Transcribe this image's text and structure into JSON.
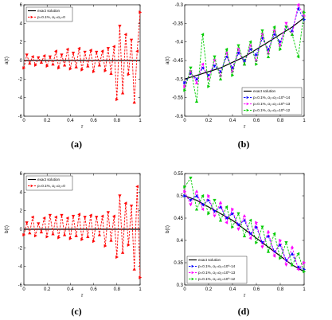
{
  "figure": {
    "captions": [
      "(a)",
      "(b)",
      "(c)",
      "(d)"
    ]
  },
  "chart_data": [
    {
      "type": "line",
      "xlabel": "τ",
      "ylabel": "a(τ)",
      "xlim": [
        0,
        1
      ],
      "ylim": [
        -6,
        6
      ],
      "xticks": [
        0,
        0.2,
        0.4,
        0.6,
        0.8,
        1
      ],
      "yticks": [
        -6,
        -4,
        -2,
        0,
        2,
        4,
        6
      ],
      "legend": "top-left",
      "colors": [
        "#000000",
        "#ff0000"
      ],
      "series": [
        {
          "name": "exact solution",
          "x": [
            0,
            1
          ],
          "values": [
            0,
            0
          ]
        },
        {
          "name": "p=0.1%, α1=α2=0",
          "x": [
            0,
            0.025,
            0.05,
            0.075,
            0.1,
            0.125,
            0.15,
            0.175,
            0.2,
            0.225,
            0.25,
            0.275,
            0.3,
            0.325,
            0.35,
            0.375,
            0.4,
            0.425,
            0.45,
            0.475,
            0.5,
            0.525,
            0.55,
            0.575,
            0.6,
            0.625,
            0.65,
            0.675,
            0.7,
            0.725,
            0.75,
            0.775,
            0.8,
            0.825,
            0.85,
            0.875,
            0.9,
            0.925,
            0.95,
            0.975,
            1
          ],
          "values": [
            -0.8,
            0.6,
            -0.3,
            0.4,
            -0.5,
            0.3,
            -0.2,
            0.5,
            -0.6,
            0.4,
            -0.4,
            1.0,
            -0.8,
            0.6,
            -0.5,
            1.2,
            -0.9,
            0.8,
            -0.7,
            1.3,
            -1.0,
            0.9,
            -0.6,
            1.1,
            -1.2,
            0.9,
            -0.5,
            1.0,
            -1.1,
            1.3,
            -1.4,
            1.5,
            -4.2,
            3.7,
            -3.5,
            2.8,
            -1.5,
            2.2,
            -4.5,
            1.0,
            5.2
          ]
        }
      ]
    },
    {
      "type": "line",
      "xlabel": "τ",
      "ylabel": "a(τ)",
      "xlim": [
        0,
        1
      ],
      "ylim": [
        -0.6,
        -0.3
      ],
      "xticks": [
        0,
        0.2,
        0.4,
        0.6,
        0.8,
        1
      ],
      "yticks": [
        -0.6,
        -0.55,
        -0.5,
        -0.45,
        -0.4,
        -0.35,
        -0.3
      ],
      "legend": "bottom-right",
      "colors": [
        "#000000",
        "#0000ff",
        "#ff00ff",
        "#00cc00"
      ],
      "series": [
        {
          "name": "exact solution",
          "x": [
            0,
            0.1,
            0.2,
            0.3,
            0.4,
            0.5,
            0.6,
            0.7,
            0.8,
            0.9,
            1
          ],
          "values": [
            -0.5,
            -0.49,
            -0.48,
            -0.47,
            -0.455,
            -0.44,
            -0.42,
            -0.4,
            -0.38,
            -0.36,
            -0.335
          ]
        },
        {
          "name": "p=0.1%, α1=α2=10^-14",
          "x": [
            0,
            0.05,
            0.1,
            0.15,
            0.2,
            0.25,
            0.3,
            0.35,
            0.4,
            0.45,
            0.5,
            0.55,
            0.6,
            0.65,
            0.7,
            0.75,
            0.8,
            0.85,
            0.9,
            0.95,
            1
          ],
          "values": [
            -0.51,
            -0.485,
            -0.5,
            -0.47,
            -0.49,
            -0.465,
            -0.48,
            -0.44,
            -0.47,
            -0.43,
            -0.45,
            -0.42,
            -0.435,
            -0.39,
            -0.42,
            -0.38,
            -0.4,
            -0.36,
            -0.37,
            -0.31,
            -0.34
          ]
        },
        {
          "name": "p=0.1%, α1=α2=10^-13",
          "x": [
            0,
            0.05,
            0.1,
            0.15,
            0.2,
            0.25,
            0.3,
            0.35,
            0.4,
            0.45,
            0.5,
            0.55,
            0.6,
            0.65,
            0.7,
            0.75,
            0.8,
            0.85,
            0.9,
            0.95,
            1
          ],
          "values": [
            -0.52,
            -0.48,
            -0.51,
            -0.46,
            -0.5,
            -0.45,
            -0.49,
            -0.43,
            -0.48,
            -0.42,
            -0.46,
            -0.41,
            -0.45,
            -0.38,
            -0.43,
            -0.37,
            -0.41,
            -0.35,
            -0.38,
            -0.3,
            -0.33
          ]
        },
        {
          "name": "p=0.1%, α1=α2=10^-12",
          "x": [
            0,
            0.05,
            0.1,
            0.15,
            0.2,
            0.25,
            0.3,
            0.35,
            0.4,
            0.45,
            0.5,
            0.55,
            0.6,
            0.65,
            0.7,
            0.75,
            0.8,
            0.85,
            0.9,
            0.95,
            1
          ],
          "values": [
            -0.53,
            -0.47,
            -0.56,
            -0.38,
            -0.52,
            -0.44,
            -0.5,
            -0.42,
            -0.49,
            -0.41,
            -0.46,
            -0.4,
            -0.46,
            -0.37,
            -0.44,
            -0.36,
            -0.42,
            -0.36,
            -0.38,
            -0.44,
            -0.32
          ]
        }
      ]
    },
    {
      "type": "line",
      "xlabel": "τ",
      "ylabel": "b(τ)",
      "xlim": [
        0,
        1
      ],
      "ylim": [
        -6,
        6
      ],
      "xticks": [
        0,
        0.2,
        0.4,
        0.6,
        0.8,
        1
      ],
      "yticks": [
        -6,
        -4,
        -2,
        0,
        2,
        4,
        6
      ],
      "legend": "top-left",
      "colors": [
        "#000000",
        "#ff0000"
      ],
      "series": [
        {
          "name": "exact solution",
          "x": [
            0,
            1
          ],
          "values": [
            0,
            0
          ]
        },
        {
          "name": "p=0.1%, α1=α2=0",
          "x": [
            0,
            0.025,
            0.05,
            0.075,
            0.1,
            0.125,
            0.15,
            0.175,
            0.2,
            0.225,
            0.25,
            0.275,
            0.3,
            0.325,
            0.35,
            0.375,
            0.4,
            0.425,
            0.45,
            0.475,
            0.5,
            0.525,
            0.55,
            0.575,
            0.6,
            0.625,
            0.65,
            0.675,
            0.7,
            0.725,
            0.75,
            0.775,
            0.8,
            0.825,
            0.85,
            0.875,
            0.9,
            0.925,
            0.95,
            0.975,
            1
          ],
          "values": [
            -0.6,
            0.7,
            -0.4,
            1.3,
            -0.7,
            0.6,
            -0.3,
            1.2,
            -0.8,
            1.5,
            -0.5,
            1.3,
            -0.9,
            1.5,
            -0.6,
            1.2,
            -1.0,
            1.4,
            -0.7,
            1.6,
            -1.1,
            1.3,
            -0.8,
            1.5,
            -1.3,
            1.3,
            -0.6,
            1.4,
            -1.8,
            1.8,
            -1.2,
            1.4,
            -3.0,
            3.6,
            -2.5,
            2.8,
            -1.7,
            2.5,
            -4.3,
            4.6,
            -5.2
          ]
        }
      ]
    },
    {
      "type": "line",
      "xlabel": "τ",
      "ylabel": "b(τ)",
      "xlim": [
        0,
        1
      ],
      "ylim": [
        0.3,
        0.55
      ],
      "xticks": [
        0,
        0.2,
        0.4,
        0.6,
        0.8,
        1
      ],
      "yticks": [
        0.3,
        0.35,
        0.4,
        0.45,
        0.5,
        0.55
      ],
      "legend": "bottom-left",
      "colors": [
        "#000000",
        "#0000ff",
        "#ff00ff",
        "#00cc00"
      ],
      "series": [
        {
          "name": "exact solution",
          "x": [
            0,
            0.1,
            0.2,
            0.3,
            0.4,
            0.5,
            0.6,
            0.7,
            0.8,
            0.9,
            1
          ],
          "values": [
            0.5,
            0.49,
            0.475,
            0.46,
            0.445,
            0.425,
            0.405,
            0.385,
            0.365,
            0.345,
            0.33
          ]
        },
        {
          "name": "p=0.1%, α1=α2=10^-14",
          "x": [
            0,
            0.05,
            0.1,
            0.15,
            0.2,
            0.25,
            0.3,
            0.35,
            0.4,
            0.45,
            0.5,
            0.55,
            0.6,
            0.65,
            0.7,
            0.75,
            0.8,
            0.85,
            0.9,
            0.95,
            1
          ],
          "values": [
            0.5,
            0.49,
            0.5,
            0.48,
            0.49,
            0.465,
            0.475,
            0.45,
            0.46,
            0.435,
            0.445,
            0.415,
            0.43,
            0.395,
            0.41,
            0.375,
            0.39,
            0.355,
            0.37,
            0.34,
            0.335
          ]
        },
        {
          "name": "p=0.1%, α1=α2=10^-13",
          "x": [
            0,
            0.05,
            0.1,
            0.15,
            0.2,
            0.25,
            0.3,
            0.35,
            0.4,
            0.45,
            0.5,
            0.55,
            0.6,
            0.65,
            0.7,
            0.75,
            0.8,
            0.85,
            0.9,
            0.95,
            1
          ],
          "values": [
            0.51,
            0.48,
            0.51,
            0.47,
            0.5,
            0.455,
            0.485,
            0.44,
            0.47,
            0.425,
            0.455,
            0.405,
            0.44,
            0.385,
            0.42,
            0.365,
            0.4,
            0.345,
            0.385,
            0.335,
            0.35
          ]
        },
        {
          "name": "p=0.1%, α1=α2=10^-12",
          "x": [
            0,
            0.05,
            0.1,
            0.15,
            0.2,
            0.25,
            0.3,
            0.35,
            0.4,
            0.45,
            0.5,
            0.55,
            0.6,
            0.65,
            0.7,
            0.75,
            0.8,
            0.85,
            0.9,
            0.95,
            1
          ],
          "values": [
            0.52,
            0.54,
            0.47,
            0.5,
            0.46,
            0.49,
            0.445,
            0.475,
            0.43,
            0.46,
            0.41,
            0.445,
            0.395,
            0.43,
            0.375,
            0.415,
            0.36,
            0.395,
            0.345,
            0.37,
            0.33
          ]
        }
      ]
    }
  ]
}
